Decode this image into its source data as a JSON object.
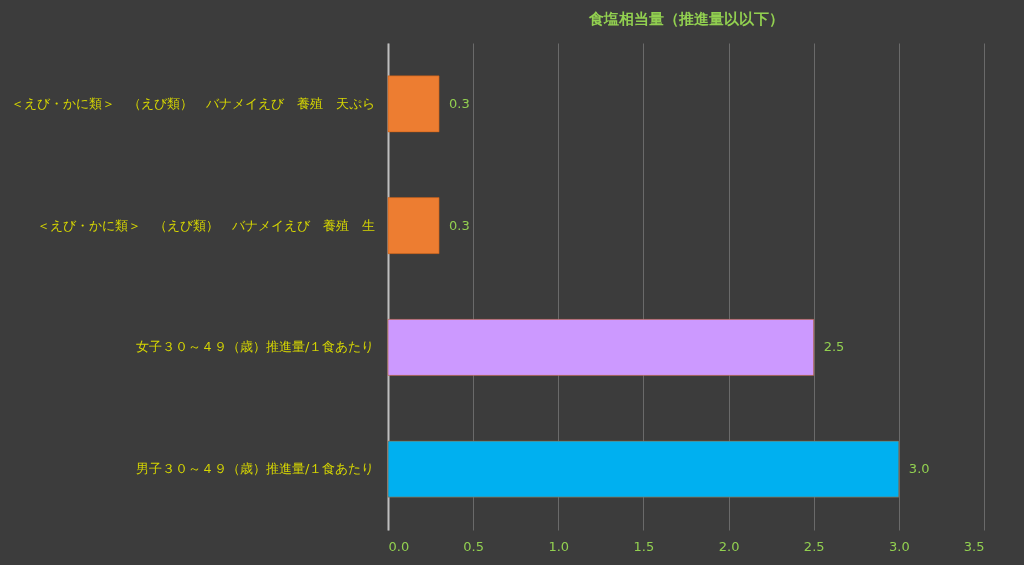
{
  "chart_data": {
    "type": "bar",
    "orientation": "horizontal",
    "title": "食塩相当量（推進量以以下）",
    "categories": [
      "＜えび・かに類＞　（えび類）　バナメイえび　養殖　天ぷら",
      "＜えび・かに類＞　（えび類）　バナメイえび　養殖　生",
      "女子３０～４９（歳）推進量/１食あたり",
      "男子３０～４９（歳）推進量/１食あたり"
    ],
    "values": [
      0.3,
      0.3,
      2.5,
      3.0
    ],
    "value_labels": [
      "0.3",
      "0.3",
      "2.5",
      "3.0"
    ],
    "colors": [
      "#ed7d31",
      "#ed7d31",
      "#cc99ff",
      "#00b0f0"
    ],
    "xlim": [
      0,
      3.5
    ],
    "xticks": [
      {
        "value": 0,
        "label": "0.0"
      },
      {
        "value": 0.5,
        "label": "0.5"
      },
      {
        "value": 1,
        "label": "1.0"
      },
      {
        "value": 1.5,
        "label": "1.5"
      },
      {
        "value": 2,
        "label": "2.0"
      },
      {
        "value": 2.5,
        "label": "2.5"
      },
      {
        "value": 3,
        "label": "3.0"
      },
      {
        "value": 3.5,
        "label": "3.5"
      }
    ],
    "grid": "x"
  }
}
